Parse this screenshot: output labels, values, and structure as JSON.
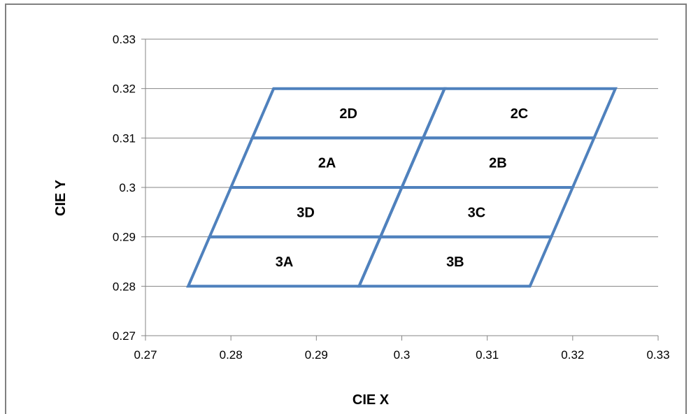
{
  "chart_data": {
    "type": "scatter",
    "xlabel": "CIE  X",
    "ylabel": "CIE  Y",
    "xlim": [
      0.27,
      0.33
    ],
    "ylim": [
      0.27,
      0.33
    ],
    "x_ticks": [
      "0.27",
      "0.28",
      "0.29",
      "0.3",
      "0.31",
      "0.32",
      "0.33"
    ],
    "y_ticks": [
      "0.27",
      "0.28",
      "0.29",
      "0.3",
      "0.31",
      "0.32",
      "0.33"
    ],
    "grid": "horizontal",
    "legend": "none",
    "line_color": "#4F81BD",
    "bins": [
      {
        "name": "3A",
        "label": "3A",
        "corners": [
          [
            0.275,
            0.28
          ],
          [
            0.295,
            0.28
          ],
          [
            0.2975,
            0.29
          ],
          [
            0.2775,
            0.29
          ]
        ]
      },
      {
        "name": "3B",
        "label": "3B",
        "corners": [
          [
            0.295,
            0.28
          ],
          [
            0.315,
            0.28
          ],
          [
            0.3175,
            0.29
          ],
          [
            0.2975,
            0.29
          ]
        ]
      },
      {
        "name": "3D",
        "label": "3D",
        "corners": [
          [
            0.2775,
            0.29
          ],
          [
            0.2975,
            0.29
          ],
          [
            0.3,
            0.3
          ],
          [
            0.28,
            0.3
          ]
        ]
      },
      {
        "name": "3C",
        "label": "3C",
        "corners": [
          [
            0.2975,
            0.29
          ],
          [
            0.3175,
            0.29
          ],
          [
            0.32,
            0.3
          ],
          [
            0.3,
            0.3
          ]
        ]
      },
      {
        "name": "2A",
        "label": "2A",
        "corners": [
          [
            0.28,
            0.3
          ],
          [
            0.3,
            0.3
          ],
          [
            0.3025,
            0.31
          ],
          [
            0.2825,
            0.31
          ]
        ]
      },
      {
        "name": "2B",
        "label": "2B",
        "corners": [
          [
            0.3,
            0.3
          ],
          [
            0.32,
            0.3
          ],
          [
            0.3225,
            0.31
          ],
          [
            0.3025,
            0.31
          ]
        ]
      },
      {
        "name": "2D",
        "label": "2D",
        "corners": [
          [
            0.2825,
            0.31
          ],
          [
            0.3025,
            0.31
          ],
          [
            0.305,
            0.32
          ],
          [
            0.285,
            0.32
          ]
        ]
      },
      {
        "name": "2C",
        "label": "2C",
        "corners": [
          [
            0.3025,
            0.31
          ],
          [
            0.3225,
            0.31
          ],
          [
            0.325,
            0.32
          ],
          [
            0.305,
            0.32
          ]
        ]
      }
    ]
  }
}
